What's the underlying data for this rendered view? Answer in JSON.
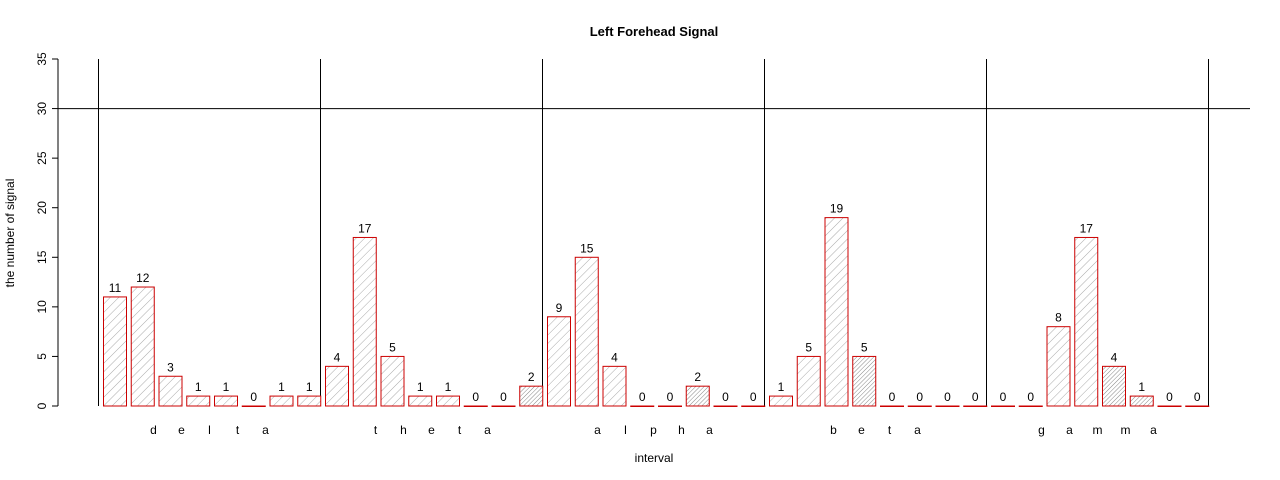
{
  "chart_data": {
    "type": "bar",
    "title": "Left Forehead Signal",
    "xlabel": "interval",
    "ylabel": "the number of signal",
    "ylim": [
      0,
      35
    ],
    "yticks": [
      0,
      5,
      10,
      15,
      20,
      25,
      30,
      35
    ],
    "threshold_line": 30,
    "grid": false,
    "colors": {
      "bar_border": "#cc0000",
      "hatch": "#999999"
    },
    "values": [
      11,
      12,
      3,
      1,
      1,
      0,
      1,
      1,
      4,
      17,
      5,
      1,
      1,
      0,
      0,
      2,
      9,
      15,
      4,
      0,
      0,
      2,
      0,
      0,
      1,
      5,
      19,
      5,
      0,
      0,
      0,
      0,
      0,
      0,
      8,
      17,
      4,
      1,
      0,
      0
    ],
    "groups": [
      {
        "letters": [
          "d",
          "e",
          "l",
          "t",
          "a"
        ]
      },
      {
        "letters": [
          "t",
          "h",
          "e",
          "t",
          "a"
        ]
      },
      {
        "letters": [
          "a",
          "l",
          "p",
          "h",
          "a"
        ]
      },
      {
        "letters": [
          "b",
          "e",
          "t",
          "a"
        ]
      },
      {
        "letters": [
          "g",
          "a",
          "m",
          "m",
          "a"
        ]
      }
    ]
  }
}
